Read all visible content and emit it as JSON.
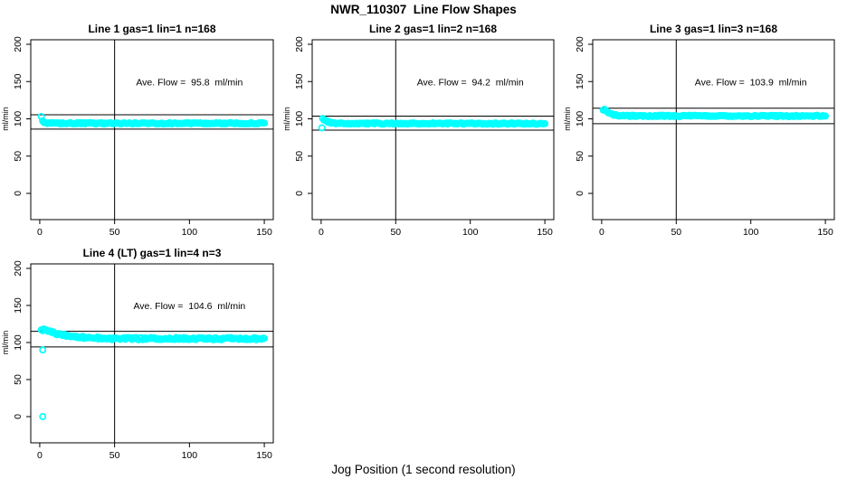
{
  "title": "NWR_110307  Line Flow Shapes",
  "xlabel": "Jog Position (1 second resolution)",
  "background_color": "#ffffff",
  "axis_color": "#000000",
  "chart_data": {
    "type": "scatter",
    "title": "NWR_110307  Line Flow Shapes",
    "xlabel": "Jog Position (1 second resolution)",
    "ylabel": "ml/min",
    "xlim": [
      0,
      150
    ],
    "ylim": [
      0,
      200
    ],
    "x_ticks": [
      0,
      50,
      100,
      150
    ],
    "y_ticks": [
      0,
      50,
      100,
      150,
      200
    ],
    "vline_x": 50,
    "point_color": "#00ffff",
    "grid": false,
    "legend": false,
    "panels": [
      {
        "title": "Line 1 gas=1 lin=1 n=168",
        "line": 1,
        "gas": 1,
        "lin": 1,
        "n": 168,
        "ave_flow": 95.8,
        "annotation": "Ave. Flow =  95.8  ml/min",
        "ref_lines": [
          105.4,
          86.2
        ],
        "band_profile": [
          [
            1,
            103
          ],
          [
            2,
            95.5
          ],
          [
            4,
            94.3
          ],
          [
            8,
            94
          ],
          [
            150,
            94
          ]
        ],
        "noise": 0.9,
        "outliers": []
      },
      {
        "title": "Line 2 gas=1 lin=2 n=168",
        "line": 2,
        "gas": 1,
        "lin": 2,
        "n": 168,
        "ave_flow": 94.2,
        "annotation": "Ave. Flow =  94.2  ml/min",
        "ref_lines": [
          103.6,
          84.8
        ],
        "band_profile": [
          [
            1,
            100
          ],
          [
            3,
            98
          ],
          [
            5,
            95.5
          ],
          [
            9,
            93.8
          ],
          [
            150,
            93.6
          ]
        ],
        "noise": 0.9,
        "outliers": [
          [
            0.5,
            88
          ]
        ]
      },
      {
        "title": "Line 3 gas=1 lin=3 n=168",
        "line": 3,
        "gas": 1,
        "lin": 3,
        "n": 168,
        "ave_flow": 103.9,
        "annotation": "Ave. Flow =  103.9  ml/min",
        "ref_lines": [
          114.3,
          93.5
        ],
        "band_profile": [
          [
            1,
            112.5
          ],
          [
            3,
            111
          ],
          [
            5,
            108
          ],
          [
            8,
            105.5
          ],
          [
            13,
            104
          ],
          [
            150,
            103.8
          ]
        ],
        "noise": 0.9,
        "outliers": []
      },
      {
        "title": "Line 4 (LT) gas=1 lin=4 n=3",
        "line": 4,
        "gas": 1,
        "lin": 4,
        "n": 3,
        "ave_flow": 104.6,
        "annotation": "Ave. Flow =  104.6  ml/min",
        "ref_lines": [
          115.1,
          94.1
        ],
        "band_profile": [
          [
            1,
            117.5
          ],
          [
            5,
            116.5
          ],
          [
            9,
            113.5
          ],
          [
            14,
            110.5
          ],
          [
            20,
            108.5
          ],
          [
            28,
            107
          ],
          [
            38,
            106
          ],
          [
            50,
            105.3
          ],
          [
            150,
            105
          ]
        ],
        "noise": 1.5,
        "outliers": [
          [
            2,
            90
          ],
          [
            2,
            0
          ]
        ]
      }
    ]
  }
}
